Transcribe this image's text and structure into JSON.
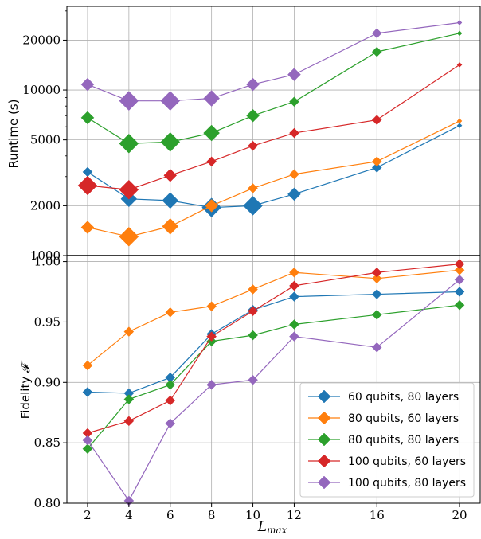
{
  "chart_data": [
    {
      "type": "line",
      "panel": "top",
      "ylabel": "Runtime (s)",
      "yscale": "log",
      "ylim": [
        1000,
        32000
      ],
      "yticks": [
        1000,
        2000,
        5000,
        10000,
        20000
      ],
      "ytick_labels": [
        "1000",
        "2000",
        "5000",
        "10000",
        "20000"
      ],
      "x": [
        2,
        4,
        6,
        8,
        10,
        12,
        16,
        20
      ],
      "xlim": [
        1,
        21
      ],
      "grid": true,
      "series": [
        {
          "name": "60 qubits, 80 layers",
          "color": "#1f77b4",
          "values": [
            3200,
            2200,
            2150,
            1950,
            2000,
            2350,
            3400,
            6100
          ],
          "marker_scale": [
            1,
            3,
            3,
            4,
            4,
            2,
            1,
            0
          ]
        },
        {
          "name": "80 qubits, 60 layers",
          "color": "#ff7f0e",
          "values": [
            1480,
            1300,
            1500,
            2000,
            2550,
            3100,
            3700,
            6500
          ],
          "marker_scale": [
            2,
            4,
            3,
            2,
            1,
            1,
            1,
            0
          ]
        },
        {
          "name": "80 qubits, 80 layers",
          "color": "#2ca02c",
          "values": [
            6800,
            4750,
            4850,
            5500,
            7000,
            8500,
            17000,
            22000
          ],
          "marker_scale": [
            2,
            4,
            4,
            3,
            2,
            1,
            1,
            0
          ]
        },
        {
          "name": "100 qubits, 60 layers",
          "color": "#d62728",
          "values": [
            2650,
            2500,
            3050,
            3700,
            4600,
            5500,
            6600,
            14200
          ],
          "marker_scale": [
            4,
            4,
            2,
            1,
            1,
            1,
            1,
            0
          ]
        },
        {
          "name": "100 qubits, 80 layers",
          "color": "#9467bd",
          "values": [
            10800,
            8600,
            8600,
            8900,
            10800,
            12400,
            22000,
            25500
          ],
          "marker_scale": [
            2,
            4,
            4,
            3,
            2,
            2,
            1,
            0
          ]
        }
      ]
    },
    {
      "type": "line",
      "panel": "bottom",
      "ylabel": "Fidelity",
      "ylabel_symbol": "𝓕",
      "xlabel": "L",
      "xlabel_sub": "max",
      "ylim": [
        0.8,
        1.005
      ],
      "yticks": [
        0.8,
        0.85,
        0.9,
        0.95,
        1.0
      ],
      "ytick_labels": [
        "0.80",
        "0.85",
        "0.90",
        "0.95",
        "1.00"
      ],
      "x": [
        2,
        4,
        6,
        8,
        10,
        12,
        16,
        20
      ],
      "xtick_labels": [
        "2",
        "4",
        "6",
        "8",
        "10",
        "12",
        "16",
        "20"
      ],
      "grid": true,
      "legend": "lower-right",
      "series": [
        {
          "name": "60 qubits, 80 layers",
          "color": "#1f77b4",
          "values": [
            0.892,
            0.891,
            0.904,
            0.94,
            0.96,
            0.971,
            0.973,
            0.975
          ]
        },
        {
          "name": "80 qubits, 60 layers",
          "color": "#ff7f0e",
          "values": [
            0.914,
            0.942,
            0.958,
            0.963,
            0.977,
            0.991,
            0.986,
            0.993
          ]
        },
        {
          "name": "80 qubits, 80 layers",
          "color": "#2ca02c",
          "values": [
            0.845,
            0.886,
            0.898,
            0.934,
            0.939,
            0.948,
            0.956,
            0.964
          ]
        },
        {
          "name": "100 qubits, 60 layers",
          "color": "#d62728",
          "values": [
            0.858,
            0.868,
            0.885,
            0.938,
            0.959,
            0.98,
            0.991,
            0.998
          ]
        },
        {
          "name": "100 qubits, 80 layers",
          "color": "#9467bd",
          "values": [
            0.852,
            0.802,
            0.866,
            0.898,
            0.902,
            0.938,
            0.929,
            0.985
          ]
        }
      ]
    }
  ]
}
